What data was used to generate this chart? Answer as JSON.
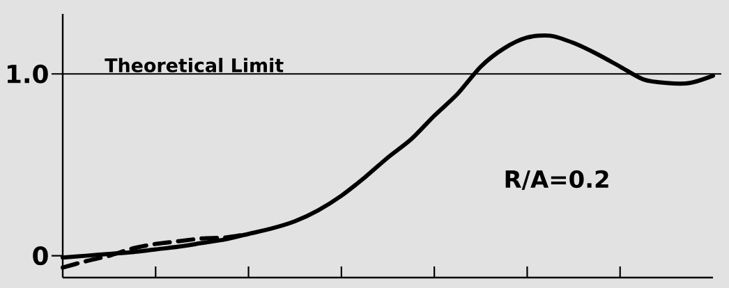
{
  "chart_data": {
    "type": "line",
    "categories": [
      null,
      null,
      null,
      null,
      null,
      null,
      null,
      null,
      null,
      null,
      null,
      null,
      null,
      null,
      null,
      null,
      null,
      null,
      null,
      null,
      null,
      null,
      null,
      null,
      null,
      null,
      null,
      null,
      null
    ],
    "series": [
      {
        "color": "#000000",
        "line_style": "solid",
        "values": [
          -0.01,
          0.0,
          0.01,
          0.02,
          0.035,
          0.05,
          0.07,
          0.09,
          0.12,
          0.15,
          0.19,
          0.25,
          0.33,
          0.43,
          0.54,
          0.64,
          0.77,
          0.89,
          1.04,
          1.14,
          1.2,
          1.21,
          1.17,
          1.11,
          1.04,
          0.97,
          0.95,
          0.95,
          0.99
        ]
      },
      {
        "color": "#000000",
        "line_style": "dashed",
        "values": [
          -0.065,
          -0.03,
          0.0,
          0.04,
          0.065,
          0.08,
          0.095,
          0.1,
          0.12,
          null,
          null,
          null,
          null,
          null,
          null,
          null,
          null,
          null,
          null,
          null,
          null,
          null,
          null,
          null,
          null,
          null,
          null,
          null,
          null
        ]
      }
    ],
    "ylim": [
      -0.12,
      1.33
    ],
    "yticks": [
      0,
      {
        "value": 1,
        "label": "1.0"
      }
    ],
    "tick_labels": "y",
    "ref_lines": [
      {
        "axis": "y",
        "value": 1,
        "label": "Theoretical Limit"
      }
    ],
    "annotations": [
      "R/A=0.2"
    ]
  }
}
